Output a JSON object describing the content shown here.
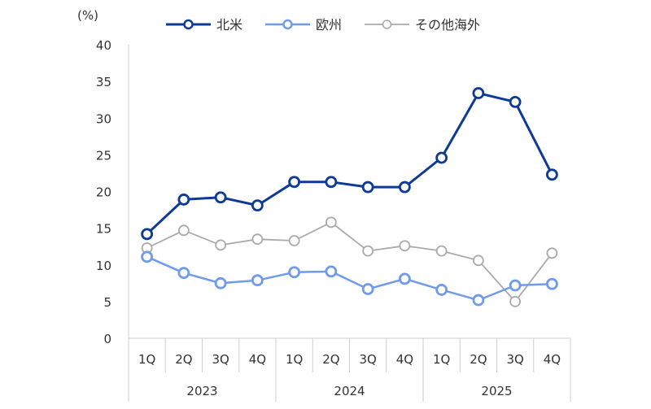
{
  "chart_data": {
    "type": "line",
    "unit_label": "(%)",
    "ylim": [
      0,
      40
    ],
    "yticks": [
      0,
      5,
      10,
      15,
      20,
      25,
      30,
      35,
      40
    ],
    "categories": [
      "1Q",
      "2Q",
      "3Q",
      "4Q",
      "1Q",
      "2Q",
      "3Q",
      "4Q",
      "1Q",
      "2Q",
      "3Q",
      "4Q"
    ],
    "groups": [
      {
        "label": "2023",
        "count": 4
      },
      {
        "label": "2024",
        "count": 4
      },
      {
        "label": "2025",
        "count": 4
      }
    ],
    "legend_position": "top-center",
    "grid": false,
    "series": [
      {
        "name": "北米",
        "color": "#0d3a96",
        "stroke_width": 3,
        "values": [
          14.2,
          18.9,
          19.2,
          18.1,
          21.3,
          21.3,
          20.6,
          20.6,
          24.6,
          33.4,
          32.2,
          22.3
        ]
      },
      {
        "name": "欧州",
        "color": "#6f9bea",
        "stroke_width": 2.5,
        "values": [
          11.1,
          8.9,
          7.5,
          7.9,
          9.0,
          9.1,
          6.7,
          8.1,
          6.6,
          5.2,
          7.2,
          7.4
        ]
      },
      {
        "name": "その他海外",
        "color": "#aaaaaa",
        "stroke_width": 1.8,
        "values": [
          12.3,
          14.7,
          12.7,
          13.5,
          13.3,
          15.8,
          11.9,
          12.6,
          11.9,
          10.6,
          5.0,
          11.6
        ]
      }
    ]
  }
}
